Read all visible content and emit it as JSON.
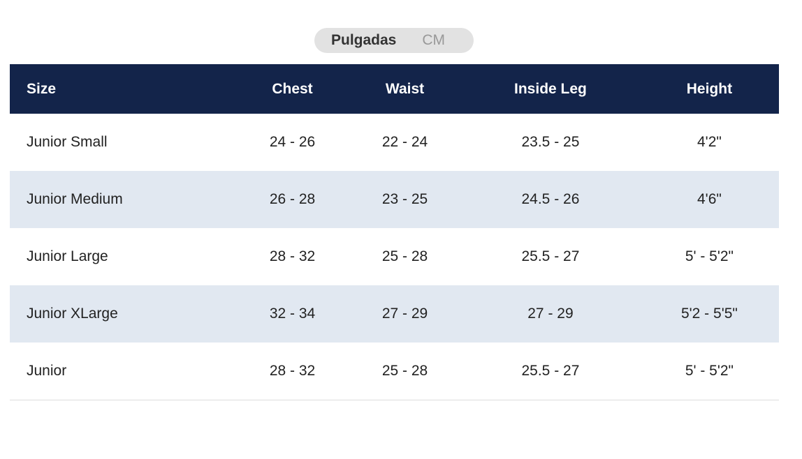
{
  "toggle": {
    "options": [
      "Pulgadas",
      "CM"
    ]
  },
  "table": {
    "header": [
      "Size",
      "Chest",
      "Waist",
      "Inside Leg",
      "Height"
    ],
    "rows": [
      [
        "Junior Small",
        "24 - 26",
        "22 - 24",
        "23.5 - 25",
        "4'2\""
      ],
      [
        "Junior Medium",
        "26 - 28",
        "23 - 25",
        "24.5 - 26",
        "4'6\""
      ],
      [
        "Junior Large",
        "28 - 32",
        "25 - 28",
        "25.5 - 27",
        "5' - 5'2\""
      ],
      [
        "Junior XLarge",
        "32 - 34",
        "27 - 29",
        "27 - 29",
        "5'2 - 5'5\""
      ],
      [
        "Junior",
        "28 - 32",
        "25 - 28",
        "25.5 - 27",
        "5' - 5'2\""
      ]
    ]
  }
}
